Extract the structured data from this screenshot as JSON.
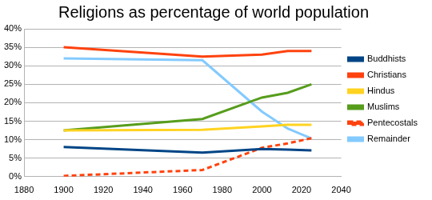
{
  "chart_data": {
    "type": "line",
    "title": "Religions as percentage of world population",
    "x": [
      1900,
      1970,
      2000,
      2013,
      2025
    ],
    "series": [
      {
        "name": "Buddhists",
        "color": "#004586",
        "values": [
          8,
          6.5,
          7.5,
          7.3,
          7.1
        ]
      },
      {
        "name": "Christians",
        "color": "#ff420e",
        "values": [
          35,
          32.5,
          33,
          34,
          34
        ]
      },
      {
        "name": "Hindus",
        "color": "#ffd320",
        "values": [
          12.5,
          12.7,
          13.6,
          14,
          14
        ]
      },
      {
        "name": "Muslims",
        "color": "#579d1c",
        "values": [
          12.5,
          15.6,
          21.4,
          22.7,
          25
        ]
      },
      {
        "name": "Pentecostals",
        "color": "#ff420e",
        "line_style": "dashed",
        "values": [
          0.2,
          1.8,
          7.8,
          9,
          10.4
        ]
      },
      {
        "name": "Remainder",
        "color": "#83caff",
        "values": [
          32,
          31.5,
          17.6,
          13,
          10.3
        ]
      }
    ],
    "xlim": [
      1880,
      2040
    ],
    "xticks": [
      1880,
      1900,
      1920,
      1940,
      1960,
      1980,
      2000,
      2020,
      2040
    ],
    "ylim": [
      0,
      40
    ],
    "yticks": [
      {
        "value": 0,
        "label": "0%"
      },
      {
        "value": 5,
        "label": "5%"
      },
      {
        "value": 10,
        "label": "10%"
      },
      {
        "value": 15,
        "label": "15%"
      },
      {
        "value": 20,
        "label": "20%"
      },
      {
        "value": 25,
        "label": "25%"
      },
      {
        "value": 30,
        "label": "30%"
      },
      {
        "value": 35,
        "label": "35%"
      },
      {
        "value": 40,
        "label": "40%"
      }
    ],
    "grid": true,
    "legend": "right"
  }
}
